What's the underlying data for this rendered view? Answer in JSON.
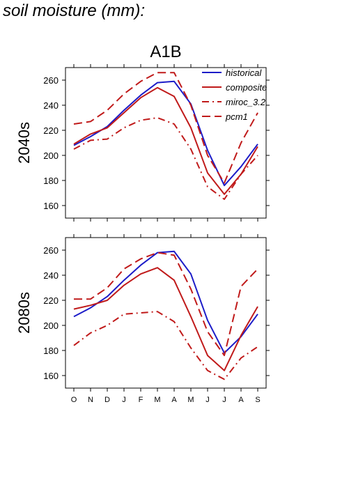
{
  "figure": {
    "title": "soil moisture (mm):",
    "scenario": "A1B"
  },
  "legend": {
    "placement": "top-right of upper panel",
    "entries": [
      {
        "name": "historical",
        "color": "#1c1cc8",
        "dash": "solid"
      },
      {
        "name": "composite",
        "color": "#c01a1a",
        "dash": "solid"
      },
      {
        "name": "miroc_3.2",
        "color": "#c01a1a",
        "dash": "dashdot"
      },
      {
        "name": "pcm1",
        "color": "#c01a1a",
        "dash": "dash"
      }
    ]
  },
  "chart_data": [
    {
      "type": "line",
      "ylabel": "2040s",
      "x": [
        "O",
        "N",
        "D",
        "J",
        "F",
        "M",
        "A",
        "M",
        "J",
        "J",
        "A",
        "S"
      ],
      "ylim": [
        150,
        270
      ],
      "yticks": [
        160,
        180,
        200,
        220,
        240,
        260
      ],
      "grid": false,
      "series": [
        {
          "name": "historical",
          "values": [
            208,
            215,
            223,
            236,
            248,
            258,
            259,
            241,
            204,
            176,
            191,
            209
          ]
        },
        {
          "name": "composite",
          "values": [
            209,
            217,
            222,
            234,
            246,
            254,
            247,
            222,
            186,
            169,
            185,
            207
          ]
        },
        {
          "name": "miroc_3.2",
          "values": [
            205,
            212,
            213,
            222,
            228,
            230,
            225,
            205,
            175,
            165,
            185,
            200
          ]
        },
        {
          "name": "pcm1",
          "values": [
            225,
            227,
            236,
            249,
            259,
            266,
            266,
            240,
            200,
            178,
            210,
            234
          ]
        }
      ]
    },
    {
      "type": "line",
      "ylabel": "2080s",
      "x": [
        "O",
        "N",
        "D",
        "J",
        "F",
        "M",
        "A",
        "M",
        "J",
        "J",
        "A",
        "S"
      ],
      "ylim": [
        150,
        270
      ],
      "yticks": [
        160,
        180,
        200,
        220,
        240,
        260
      ],
      "grid": false,
      "series": [
        {
          "name": "historical",
          "values": [
            207,
            214,
            223,
            236,
            248,
            258,
            259,
            241,
            204,
            178,
            191,
            209
          ]
        },
        {
          "name": "composite",
          "values": [
            213,
            216,
            220,
            232,
            241,
            246,
            236,
            207,
            176,
            164,
            192,
            215
          ]
        },
        {
          "name": "miroc_3.2",
          "values": [
            184,
            194,
            200,
            209,
            210,
            211,
            203,
            182,
            164,
            157,
            174,
            183
          ]
        },
        {
          "name": "pcm1",
          "values": [
            221,
            221,
            230,
            245,
            253,
            258,
            256,
            229,
            195,
            176,
            231,
            245
          ]
        }
      ]
    }
  ]
}
